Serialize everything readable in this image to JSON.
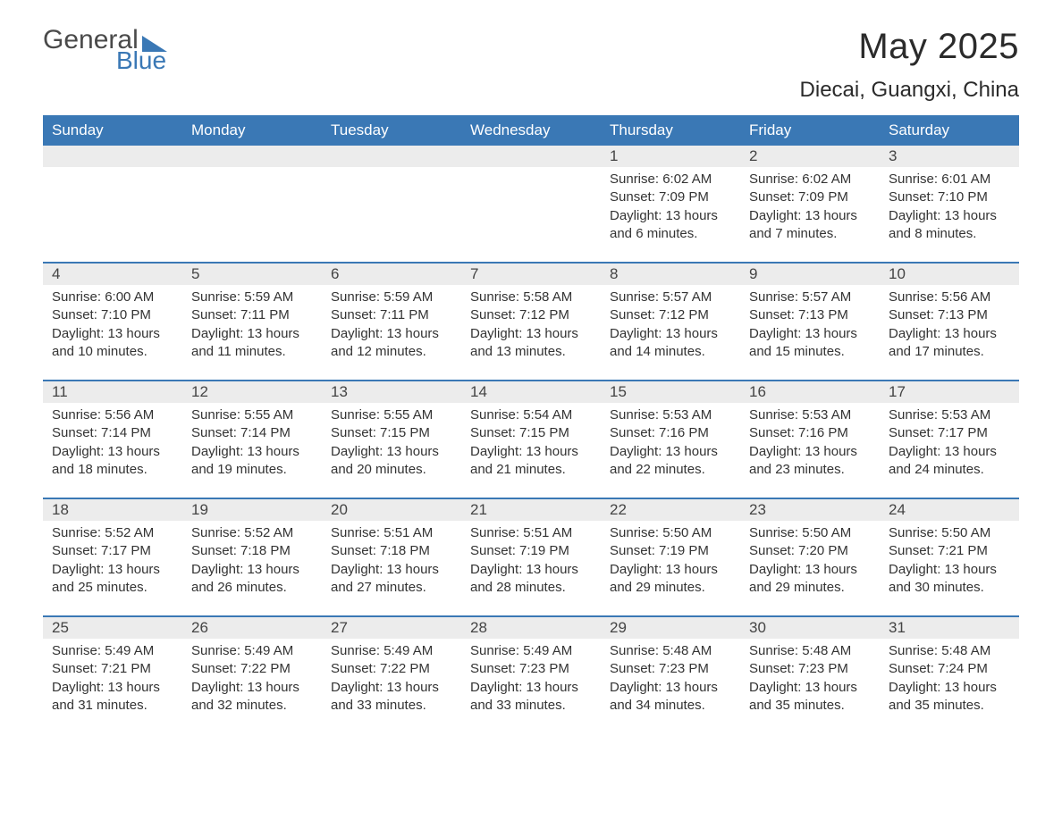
{
  "logo": {
    "word1": "General",
    "word2": "Blue"
  },
  "title": "May 2025",
  "location": "Diecai, Guangxi, China",
  "colors": {
    "header_bg": "#3a78b5",
    "header_text": "#ffffff",
    "daynum_bg": "#ececec",
    "text": "#333333",
    "border": "#3a78b5"
  },
  "day_headers": [
    "Sunday",
    "Monday",
    "Tuesday",
    "Wednesday",
    "Thursday",
    "Friday",
    "Saturday"
  ],
  "labels": {
    "sunrise": "Sunrise:",
    "sunset": "Sunset:",
    "daylight": "Daylight:"
  },
  "weeks": [
    [
      null,
      null,
      null,
      null,
      {
        "n": "1",
        "sunrise": "6:02 AM",
        "sunset": "7:09 PM",
        "daylight": "13 hours and 6 minutes."
      },
      {
        "n": "2",
        "sunrise": "6:02 AM",
        "sunset": "7:09 PM",
        "daylight": "13 hours and 7 minutes."
      },
      {
        "n": "3",
        "sunrise": "6:01 AM",
        "sunset": "7:10 PM",
        "daylight": "13 hours and 8 minutes."
      }
    ],
    [
      {
        "n": "4",
        "sunrise": "6:00 AM",
        "sunset": "7:10 PM",
        "daylight": "13 hours and 10 minutes."
      },
      {
        "n": "5",
        "sunrise": "5:59 AM",
        "sunset": "7:11 PM",
        "daylight": "13 hours and 11 minutes."
      },
      {
        "n": "6",
        "sunrise": "5:59 AM",
        "sunset": "7:11 PM",
        "daylight": "13 hours and 12 minutes."
      },
      {
        "n": "7",
        "sunrise": "5:58 AM",
        "sunset": "7:12 PM",
        "daylight": "13 hours and 13 minutes."
      },
      {
        "n": "8",
        "sunrise": "5:57 AM",
        "sunset": "7:12 PM",
        "daylight": "13 hours and 14 minutes."
      },
      {
        "n": "9",
        "sunrise": "5:57 AM",
        "sunset": "7:13 PM",
        "daylight": "13 hours and 15 minutes."
      },
      {
        "n": "10",
        "sunrise": "5:56 AM",
        "sunset": "7:13 PM",
        "daylight": "13 hours and 17 minutes."
      }
    ],
    [
      {
        "n": "11",
        "sunrise": "5:56 AM",
        "sunset": "7:14 PM",
        "daylight": "13 hours and 18 minutes."
      },
      {
        "n": "12",
        "sunrise": "5:55 AM",
        "sunset": "7:14 PM",
        "daylight": "13 hours and 19 minutes."
      },
      {
        "n": "13",
        "sunrise": "5:55 AM",
        "sunset": "7:15 PM",
        "daylight": "13 hours and 20 minutes."
      },
      {
        "n": "14",
        "sunrise": "5:54 AM",
        "sunset": "7:15 PM",
        "daylight": "13 hours and 21 minutes."
      },
      {
        "n": "15",
        "sunrise": "5:53 AM",
        "sunset": "7:16 PM",
        "daylight": "13 hours and 22 minutes."
      },
      {
        "n": "16",
        "sunrise": "5:53 AM",
        "sunset": "7:16 PM",
        "daylight": "13 hours and 23 minutes."
      },
      {
        "n": "17",
        "sunrise": "5:53 AM",
        "sunset": "7:17 PM",
        "daylight": "13 hours and 24 minutes."
      }
    ],
    [
      {
        "n": "18",
        "sunrise": "5:52 AM",
        "sunset": "7:17 PM",
        "daylight": "13 hours and 25 minutes."
      },
      {
        "n": "19",
        "sunrise": "5:52 AM",
        "sunset": "7:18 PM",
        "daylight": "13 hours and 26 minutes."
      },
      {
        "n": "20",
        "sunrise": "5:51 AM",
        "sunset": "7:18 PM",
        "daylight": "13 hours and 27 minutes."
      },
      {
        "n": "21",
        "sunrise": "5:51 AM",
        "sunset": "7:19 PM",
        "daylight": "13 hours and 28 minutes."
      },
      {
        "n": "22",
        "sunrise": "5:50 AM",
        "sunset": "7:19 PM",
        "daylight": "13 hours and 29 minutes."
      },
      {
        "n": "23",
        "sunrise": "5:50 AM",
        "sunset": "7:20 PM",
        "daylight": "13 hours and 29 minutes."
      },
      {
        "n": "24",
        "sunrise": "5:50 AM",
        "sunset": "7:21 PM",
        "daylight": "13 hours and 30 minutes."
      }
    ],
    [
      {
        "n": "25",
        "sunrise": "5:49 AM",
        "sunset": "7:21 PM",
        "daylight": "13 hours and 31 minutes."
      },
      {
        "n": "26",
        "sunrise": "5:49 AM",
        "sunset": "7:22 PM",
        "daylight": "13 hours and 32 minutes."
      },
      {
        "n": "27",
        "sunrise": "5:49 AM",
        "sunset": "7:22 PM",
        "daylight": "13 hours and 33 minutes."
      },
      {
        "n": "28",
        "sunrise": "5:49 AM",
        "sunset": "7:23 PM",
        "daylight": "13 hours and 33 minutes."
      },
      {
        "n": "29",
        "sunrise": "5:48 AM",
        "sunset": "7:23 PM",
        "daylight": "13 hours and 34 minutes."
      },
      {
        "n": "30",
        "sunrise": "5:48 AM",
        "sunset": "7:23 PM",
        "daylight": "13 hours and 35 minutes."
      },
      {
        "n": "31",
        "sunrise": "5:48 AM",
        "sunset": "7:24 PM",
        "daylight": "13 hours and 35 minutes."
      }
    ]
  ]
}
